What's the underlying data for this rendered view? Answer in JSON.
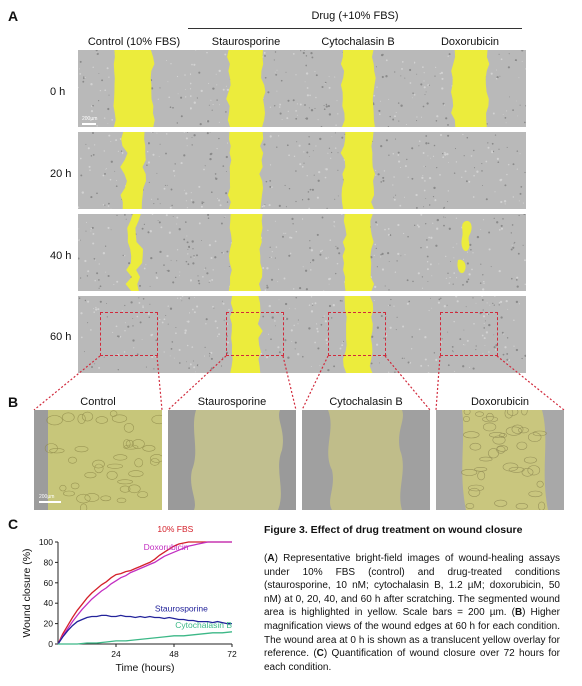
{
  "panels": {
    "a": "A",
    "b": "B",
    "c": "C"
  },
  "drug_group_label": "Drug (+10% FBS)",
  "columns": [
    "Control (10% FBS)",
    "Staurosporine",
    "Cytochalasin B",
    "Doxorubicin"
  ],
  "rows": [
    "0 h",
    "20 h",
    "40 h",
    "60 h"
  ],
  "scale_bar_a": "200µm",
  "zoom_labels": [
    "Control",
    "Staurosporine",
    "Cytochalasin B",
    "Doxorubicin"
  ],
  "scale_bar_b": "200µm",
  "colors": {
    "wound_overlay": "#ecec3c",
    "highlight_box": "#d12a3c",
    "fbs": "#d4202a",
    "doxorubicin": "#c22fc2",
    "staurosporine": "#22229a",
    "cytochalasin": "#3cb887"
  },
  "caption": {
    "title": "Figure 3. Effect of drug treatment on wound closure",
    "a_letter": "A",
    "a_text": ") Representative bright-field images of wound-healing assays under 10% FBS (control) and drug-treated conditions (staurosporine, 10 nM; cytochalasin B, 1.2 µM; doxorubicin, 50 nM) at 0, 20, 40, and 60 h after scratching. The segmented wound area is highlighted in yellow. Scale bars = 200 µm. (",
    "b_letter": "B",
    "b_text": ") Higher magnification views of the wound edges at 60 h for each condition.  The wound area at 0 h is shown as a translucent yellow overlay for reference. (",
    "c_letter": "C",
    "c_text": ") Quantification of wound closure over 72 hours for each condition."
  },
  "chart_data": {
    "type": "line",
    "xlabel": "Time (hours)",
    "ylabel": "Wound closure (%)",
    "xlim": [
      0,
      72
    ],
    "ylim": [
      0,
      100
    ],
    "xticks": [
      24,
      48,
      72
    ],
    "yticks": [
      0,
      20,
      40,
      60,
      80,
      100
    ],
    "series": [
      {
        "name": "10% FBS",
        "color": "#d4202a",
        "x": [
          0,
          2,
          4,
          6,
          8,
          10,
          12,
          14,
          16,
          18,
          20,
          22,
          24,
          26,
          28,
          30,
          32,
          34,
          36,
          38,
          40,
          42,
          44,
          46,
          48,
          50,
          52,
          54,
          56,
          58,
          60,
          62,
          64,
          66,
          68,
          70,
          72
        ],
        "y": [
          0,
          10,
          18,
          26,
          33,
          39,
          45,
          50,
          54,
          58,
          61,
          65,
          68,
          69,
          71,
          72,
          74,
          76,
          78,
          80,
          83,
          87,
          90,
          93,
          96,
          98,
          99,
          100,
          100,
          100,
          100,
          100,
          100,
          100,
          100,
          100,
          100
        ]
      },
      {
        "name": "Doxorubicin",
        "color": "#c22fc2",
        "x": [
          0,
          2,
          4,
          6,
          8,
          10,
          12,
          14,
          16,
          18,
          20,
          22,
          24,
          26,
          28,
          30,
          32,
          34,
          36,
          38,
          40,
          42,
          44,
          46,
          48,
          50,
          52,
          54,
          56,
          58,
          60,
          62,
          64,
          66,
          68,
          70,
          72
        ],
        "y": [
          0,
          8,
          15,
          22,
          28,
          34,
          39,
          44,
          48,
          52,
          55,
          59,
          62,
          65,
          67,
          70,
          72,
          74,
          76,
          78,
          80,
          83,
          86,
          88,
          90,
          92,
          94,
          96,
          97,
          98,
          99,
          100,
          100,
          100,
          100,
          100,
          100
        ]
      },
      {
        "name": "Staurosporine",
        "color": "#22229a",
        "x": [
          0,
          2,
          4,
          6,
          8,
          10,
          12,
          14,
          16,
          18,
          20,
          22,
          24,
          26,
          28,
          30,
          32,
          34,
          36,
          38,
          40,
          42,
          44,
          46,
          48,
          50,
          52,
          54,
          56,
          58,
          60,
          62,
          64,
          66,
          68,
          70,
          72
        ],
        "y": [
          0,
          7,
          13,
          18,
          22,
          24,
          26,
          27,
          27,
          28,
          28,
          27,
          27,
          28,
          27,
          27,
          26,
          27,
          26,
          27,
          26,
          26,
          25,
          26,
          25,
          24,
          24,
          23,
          23,
          22,
          22,
          22,
          21,
          22,
          21,
          20,
          20
        ]
      },
      {
        "name": "Cytochalasin B",
        "color": "#3cb887",
        "x": [
          0,
          4,
          8,
          12,
          16,
          20,
          24,
          28,
          32,
          36,
          40,
          44,
          48,
          52,
          56,
          60,
          64,
          68,
          72
        ],
        "y": [
          0,
          0,
          0,
          1,
          1,
          2,
          3,
          3,
          4,
          5,
          6,
          7,
          8,
          8,
          9,
          10,
          11,
          11,
          12
        ]
      }
    ]
  }
}
